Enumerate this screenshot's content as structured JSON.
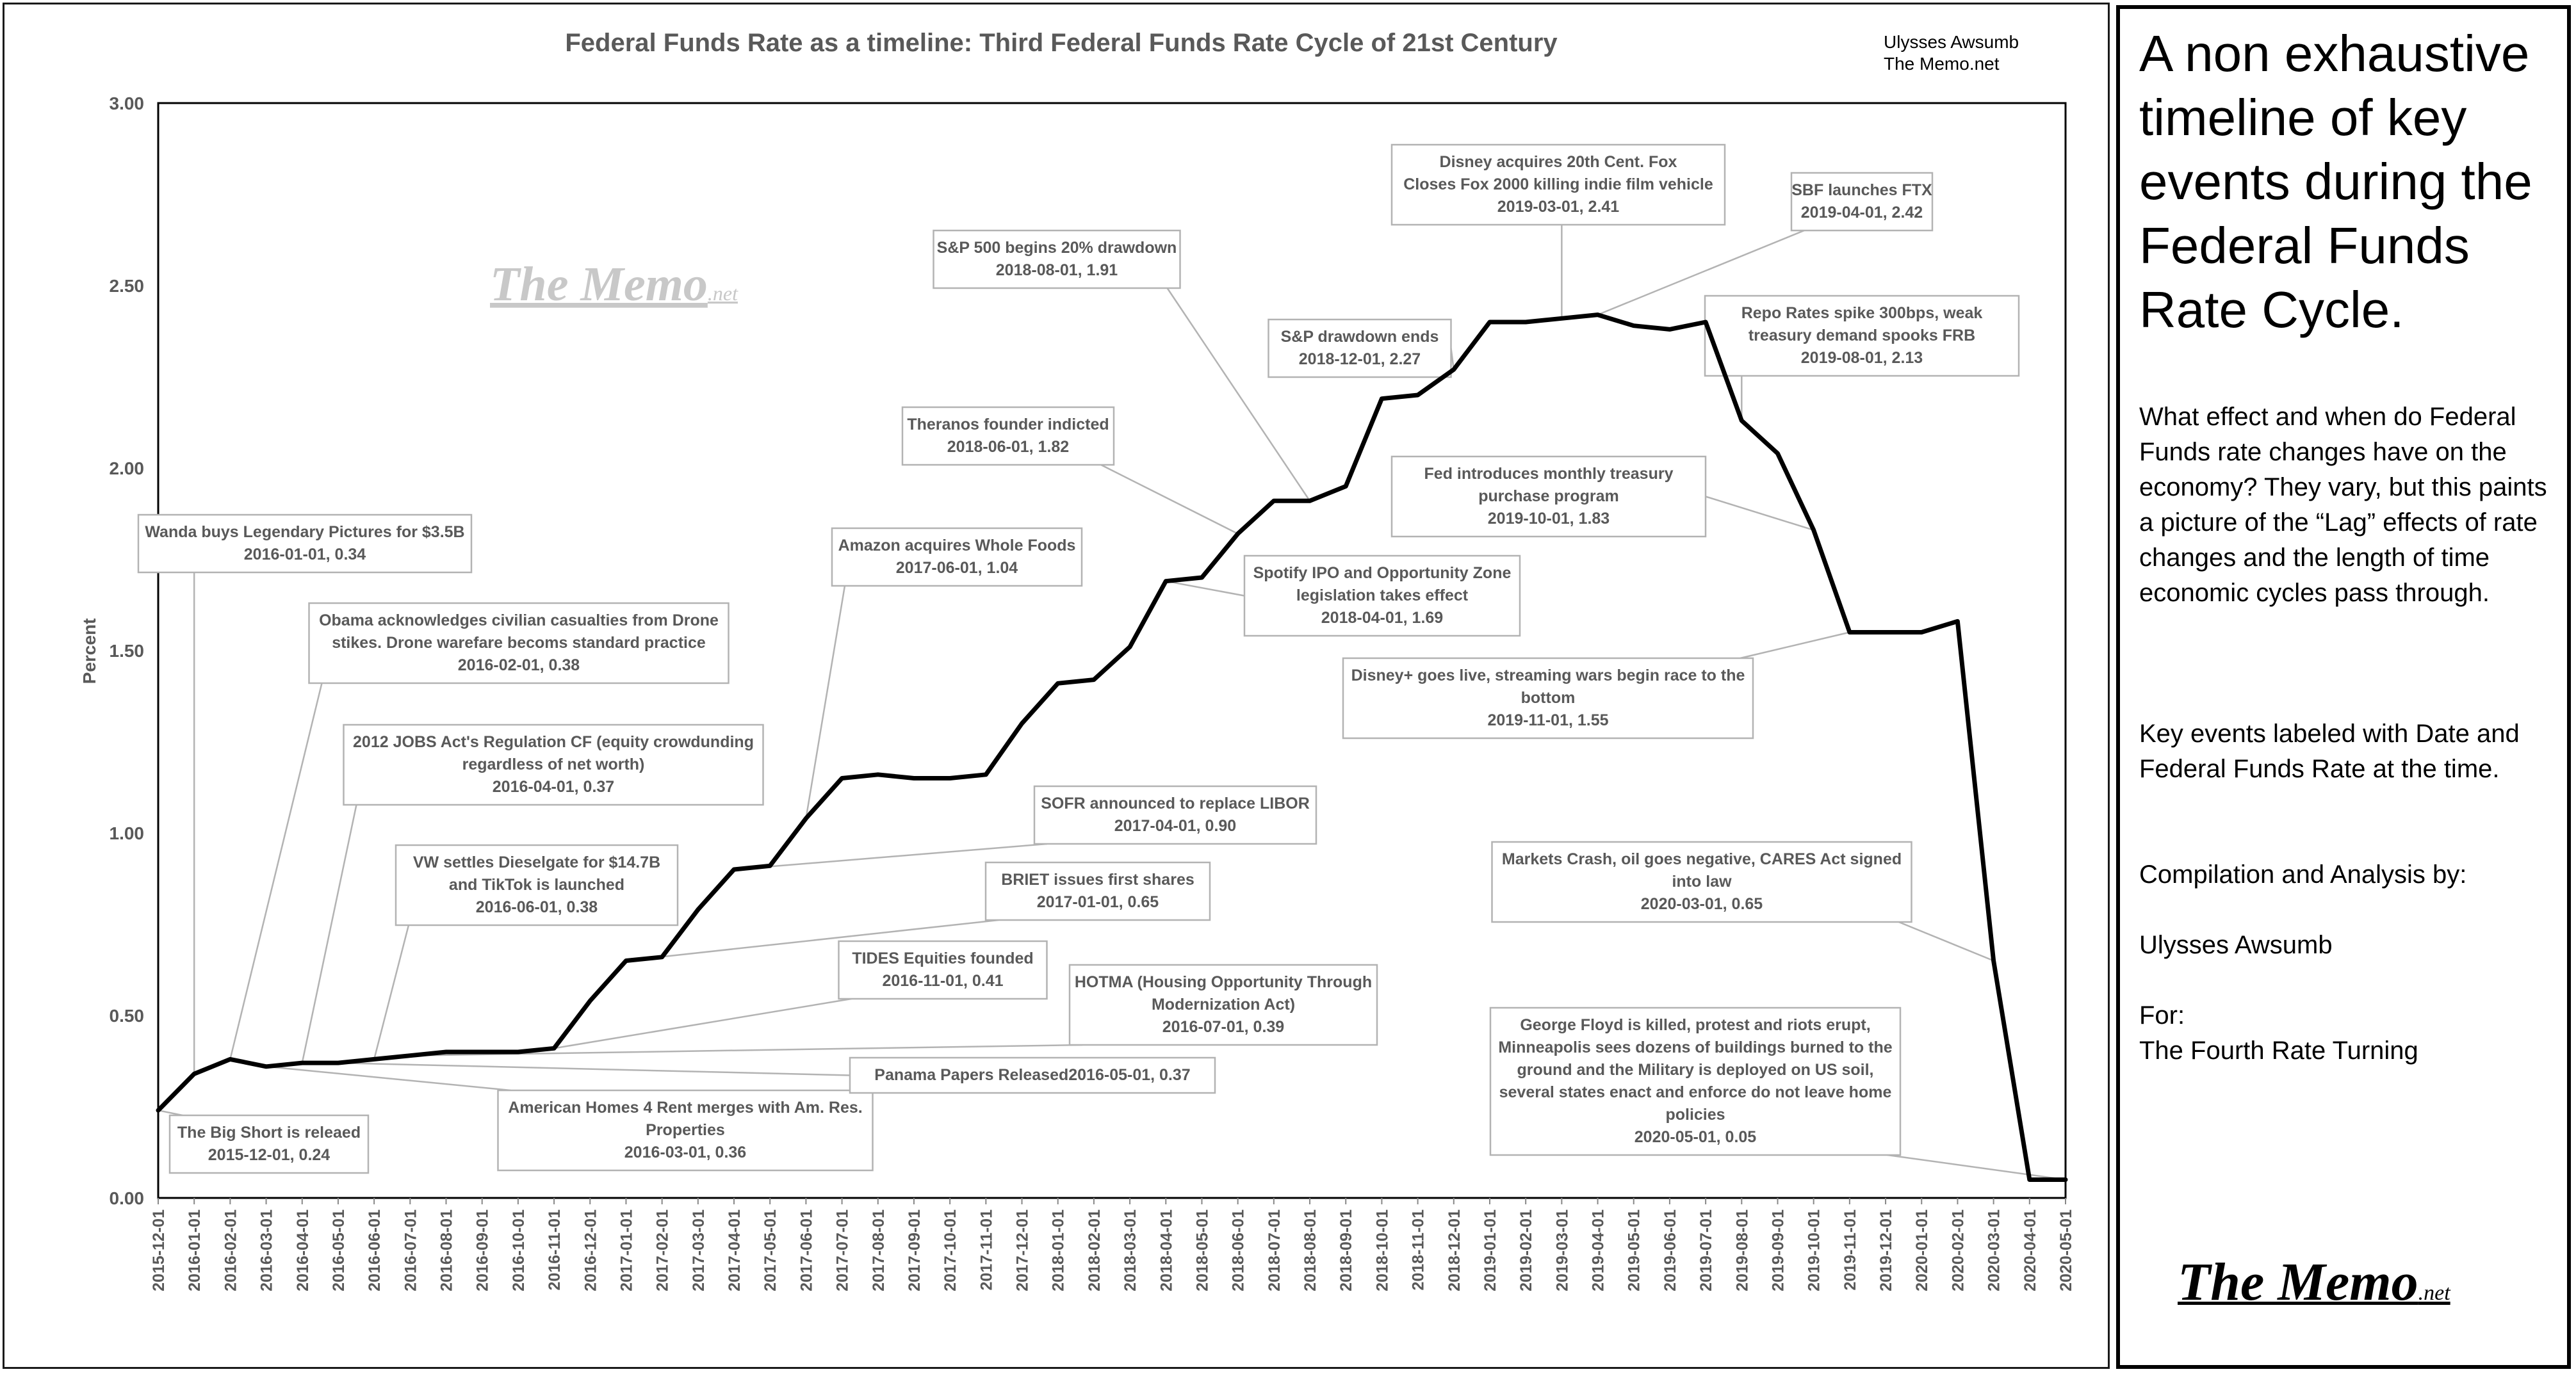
{
  "chart_data": {
    "type": "line",
    "title": "Federal Funds Rate as a timeline: Third Federal Funds Rate Cycle of 21st Century",
    "credit_lines": [
      "Ulysses Awsumb",
      "The Memo.net"
    ],
    "watermark": {
      "main": "The Memo",
      "suffix": ".net"
    },
    "ylabel": "Percent",
    "xlabel": "",
    "ylim": [
      0,
      3
    ],
    "y_ticks": [
      "0.00",
      "0.50",
      "1.00",
      "1.50",
      "2.00",
      "2.50",
      "3.00"
    ],
    "grid": false,
    "line_color": "#000000",
    "categories": [
      "2015-12-01",
      "2016-01-01",
      "2016-02-01",
      "2016-03-01",
      "2016-04-01",
      "2016-05-01",
      "2016-06-01",
      "2016-07-01",
      "2016-08-01",
      "2016-09-01",
      "2016-10-01",
      "2016-11-01",
      "2016-12-01",
      "2017-01-01",
      "2017-02-01",
      "2017-03-01",
      "2017-04-01",
      "2017-05-01",
      "2017-06-01",
      "2017-07-01",
      "2017-08-01",
      "2017-09-01",
      "2017-10-01",
      "2017-11-01",
      "2017-12-01",
      "2018-01-01",
      "2018-02-01",
      "2018-03-01",
      "2018-04-01",
      "2018-05-01",
      "2018-06-01",
      "2018-07-01",
      "2018-08-01",
      "2018-09-01",
      "2018-10-01",
      "2018-11-01",
      "2018-12-01",
      "2019-01-01",
      "2019-02-01",
      "2019-03-01",
      "2019-04-01",
      "2019-05-01",
      "2019-06-01",
      "2019-07-01",
      "2019-08-01",
      "2019-09-01",
      "2019-10-01",
      "2019-11-01",
      "2019-12-01",
      "2020-01-01",
      "2020-02-01",
      "2020-03-01",
      "2020-04-01",
      "2020-05-01"
    ],
    "values": [
      0.24,
      0.34,
      0.38,
      0.36,
      0.37,
      0.37,
      0.38,
      0.39,
      0.4,
      0.4,
      0.4,
      0.41,
      0.54,
      0.65,
      0.66,
      0.79,
      0.9,
      0.91,
      1.04,
      1.15,
      1.16,
      1.15,
      1.15,
      1.16,
      1.3,
      1.41,
      1.42,
      1.51,
      1.69,
      1.7,
      1.82,
      1.91,
      1.91,
      1.95,
      2.19,
      2.2,
      2.27,
      2.4,
      2.4,
      2.41,
      2.42,
      2.39,
      2.38,
      2.4,
      2.13,
      2.04,
      1.83,
      1.55,
      1.55,
      1.55,
      1.58,
      0.65,
      0.05,
      0.05
    ],
    "annotations": [
      {
        "lines": [
          "The Big Short is releaed",
          "2015-12-01, 0.24"
        ],
        "date": "2015-12-01",
        "value": 0.24
      },
      {
        "lines": [
          "Wanda buys Legendary Pictures for $3.5B",
          "2016-01-01, 0.34"
        ],
        "date": "2016-01-01",
        "value": 0.34
      },
      {
        "lines": [
          "Obama acknowledges civilian casualties from Drone",
          "stikes. Drone warefare becoms standard practice",
          "2016-02-01, 0.38"
        ],
        "date": "2016-02-01",
        "value": 0.38
      },
      {
        "lines": [
          "American Homes 4 Rent merges with Am. Res.",
          "Properties",
          "2016-03-01, 0.36"
        ],
        "date": "2016-03-01",
        "value": 0.36
      },
      {
        "lines": [
          "2012 JOBS Act's Regulation CF (equity crowdunding",
          "regardless of net worth)",
          "2016-04-01, 0.37"
        ],
        "date": "2016-04-01",
        "value": 0.37
      },
      {
        "lines": [
          "Panama Papers Released2016-05-01, 0.37"
        ],
        "date": "2016-05-01",
        "value": 0.37
      },
      {
        "lines": [
          "VW settles Dieselgate for $14.7B",
          "and TikTok is launched",
          "2016-06-01, 0.38"
        ],
        "date": "2016-06-01",
        "value": 0.38
      },
      {
        "lines": [
          "HOTMA (Housing Opportunity Through",
          "Modernization Act)",
          "2016-07-01, 0.39"
        ],
        "date": "2016-07-01",
        "value": 0.39
      },
      {
        "lines": [
          "TIDES Equities founded",
          "2016-11-01, 0.41"
        ],
        "date": "2016-11-01",
        "value": 0.41
      },
      {
        "lines": [
          "BRIET issues first shares",
          "2017-01-01, 0.65"
        ],
        "date": "2017-01-01",
        "value": 0.65
      },
      {
        "lines": [
          "SOFR announced to replace LIBOR",
          "2017-04-01, 0.90"
        ],
        "date": "2017-04-01",
        "value": 0.9
      },
      {
        "lines": [
          "Amazon acquires Whole Foods",
          "2017-06-01, 1.04"
        ],
        "date": "2017-06-01",
        "value": 1.04
      },
      {
        "lines": [
          "Spotify IPO and Opportunity Zone",
          "legislation takes effect",
          "2018-04-01, 1.69"
        ],
        "date": "2018-04-01",
        "value": 1.69
      },
      {
        "lines": [
          "Theranos founder indicted",
          "2018-06-01, 1.82"
        ],
        "date": "2018-06-01",
        "value": 1.82
      },
      {
        "lines": [
          "S&P 500 begins 20% drawdown",
          "2018-08-01, 1.91"
        ],
        "date": "2018-08-01",
        "value": 1.91
      },
      {
        "lines": [
          "S&P drawdown ends",
          "2018-12-01, 2.27"
        ],
        "date": "2018-12-01",
        "value": 2.27
      },
      {
        "lines": [
          "Disney acquires 20th Cent. Fox",
          "Closes Fox 2000 killing indie film vehicle",
          "2019-03-01, 2.41"
        ],
        "date": "2019-03-01",
        "value": 2.41
      },
      {
        "lines": [
          "SBF launches FTX",
          "2019-04-01, 2.42"
        ],
        "date": "2019-04-01",
        "value": 2.42
      },
      {
        "lines": [
          "Repo Rates spike 300bps, weak",
          "treasury demand spooks FRB",
          "2019-08-01, 2.13"
        ],
        "date": "2019-08-01",
        "value": 2.13
      },
      {
        "lines": [
          "Fed introduces monthly treasury",
          "purchase program",
          "2019-10-01, 1.83"
        ],
        "date": "2019-10-01",
        "value": 1.83
      },
      {
        "lines": [
          "Disney+ goes live, streaming wars begin race to the",
          "bottom",
          "2019-11-01, 1.55"
        ],
        "date": "2019-11-01",
        "value": 1.55
      },
      {
        "lines": [
          "Markets Crash, oil goes negative, CARES Act signed",
          "into law",
          "2020-03-01, 0.65"
        ],
        "date": "2020-03-01",
        "value": 0.65
      },
      {
        "lines": [
          "George Floyd is killed, protest and riots erupt,",
          "Minneapolis sees dozens of buildings burned to the",
          "ground and the Military is deployed on US soil,",
          "several states enact and enforce do not leave home",
          "policies",
          "2020-05-01, 0.05"
        ],
        "date": "2020-05-01",
        "value": 0.05
      }
    ]
  },
  "side_panel": {
    "title": "A non exhaustive timeline of key events during the Federal Funds Rate Cycle.",
    "paragraph1": "What effect and when do Federal Funds rate changes have on the economy? They vary, but this paints a picture of the “Lag” effects of rate changes and the length of time economic cycles pass through.",
    "paragraph2": "Key events labeled with Date and Federal Funds Rate at the time.",
    "compilation_label": "Compilation and Analysis by:",
    "author": "Ulysses Awsumb",
    "for_label": "For:",
    "for_name": "The Fourth Rate Turning",
    "logo": {
      "main": "The Memo",
      "suffix": ".net"
    }
  }
}
